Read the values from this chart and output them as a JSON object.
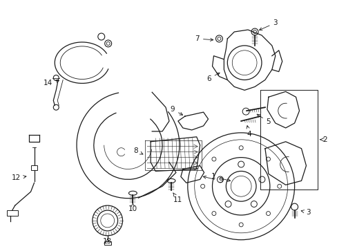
{
  "background_color": "#ffffff",
  "fig_width": 4.89,
  "fig_height": 3.6,
  "dpi": 100,
  "line_color": "#1a1a1a",
  "lw": 0.9
}
